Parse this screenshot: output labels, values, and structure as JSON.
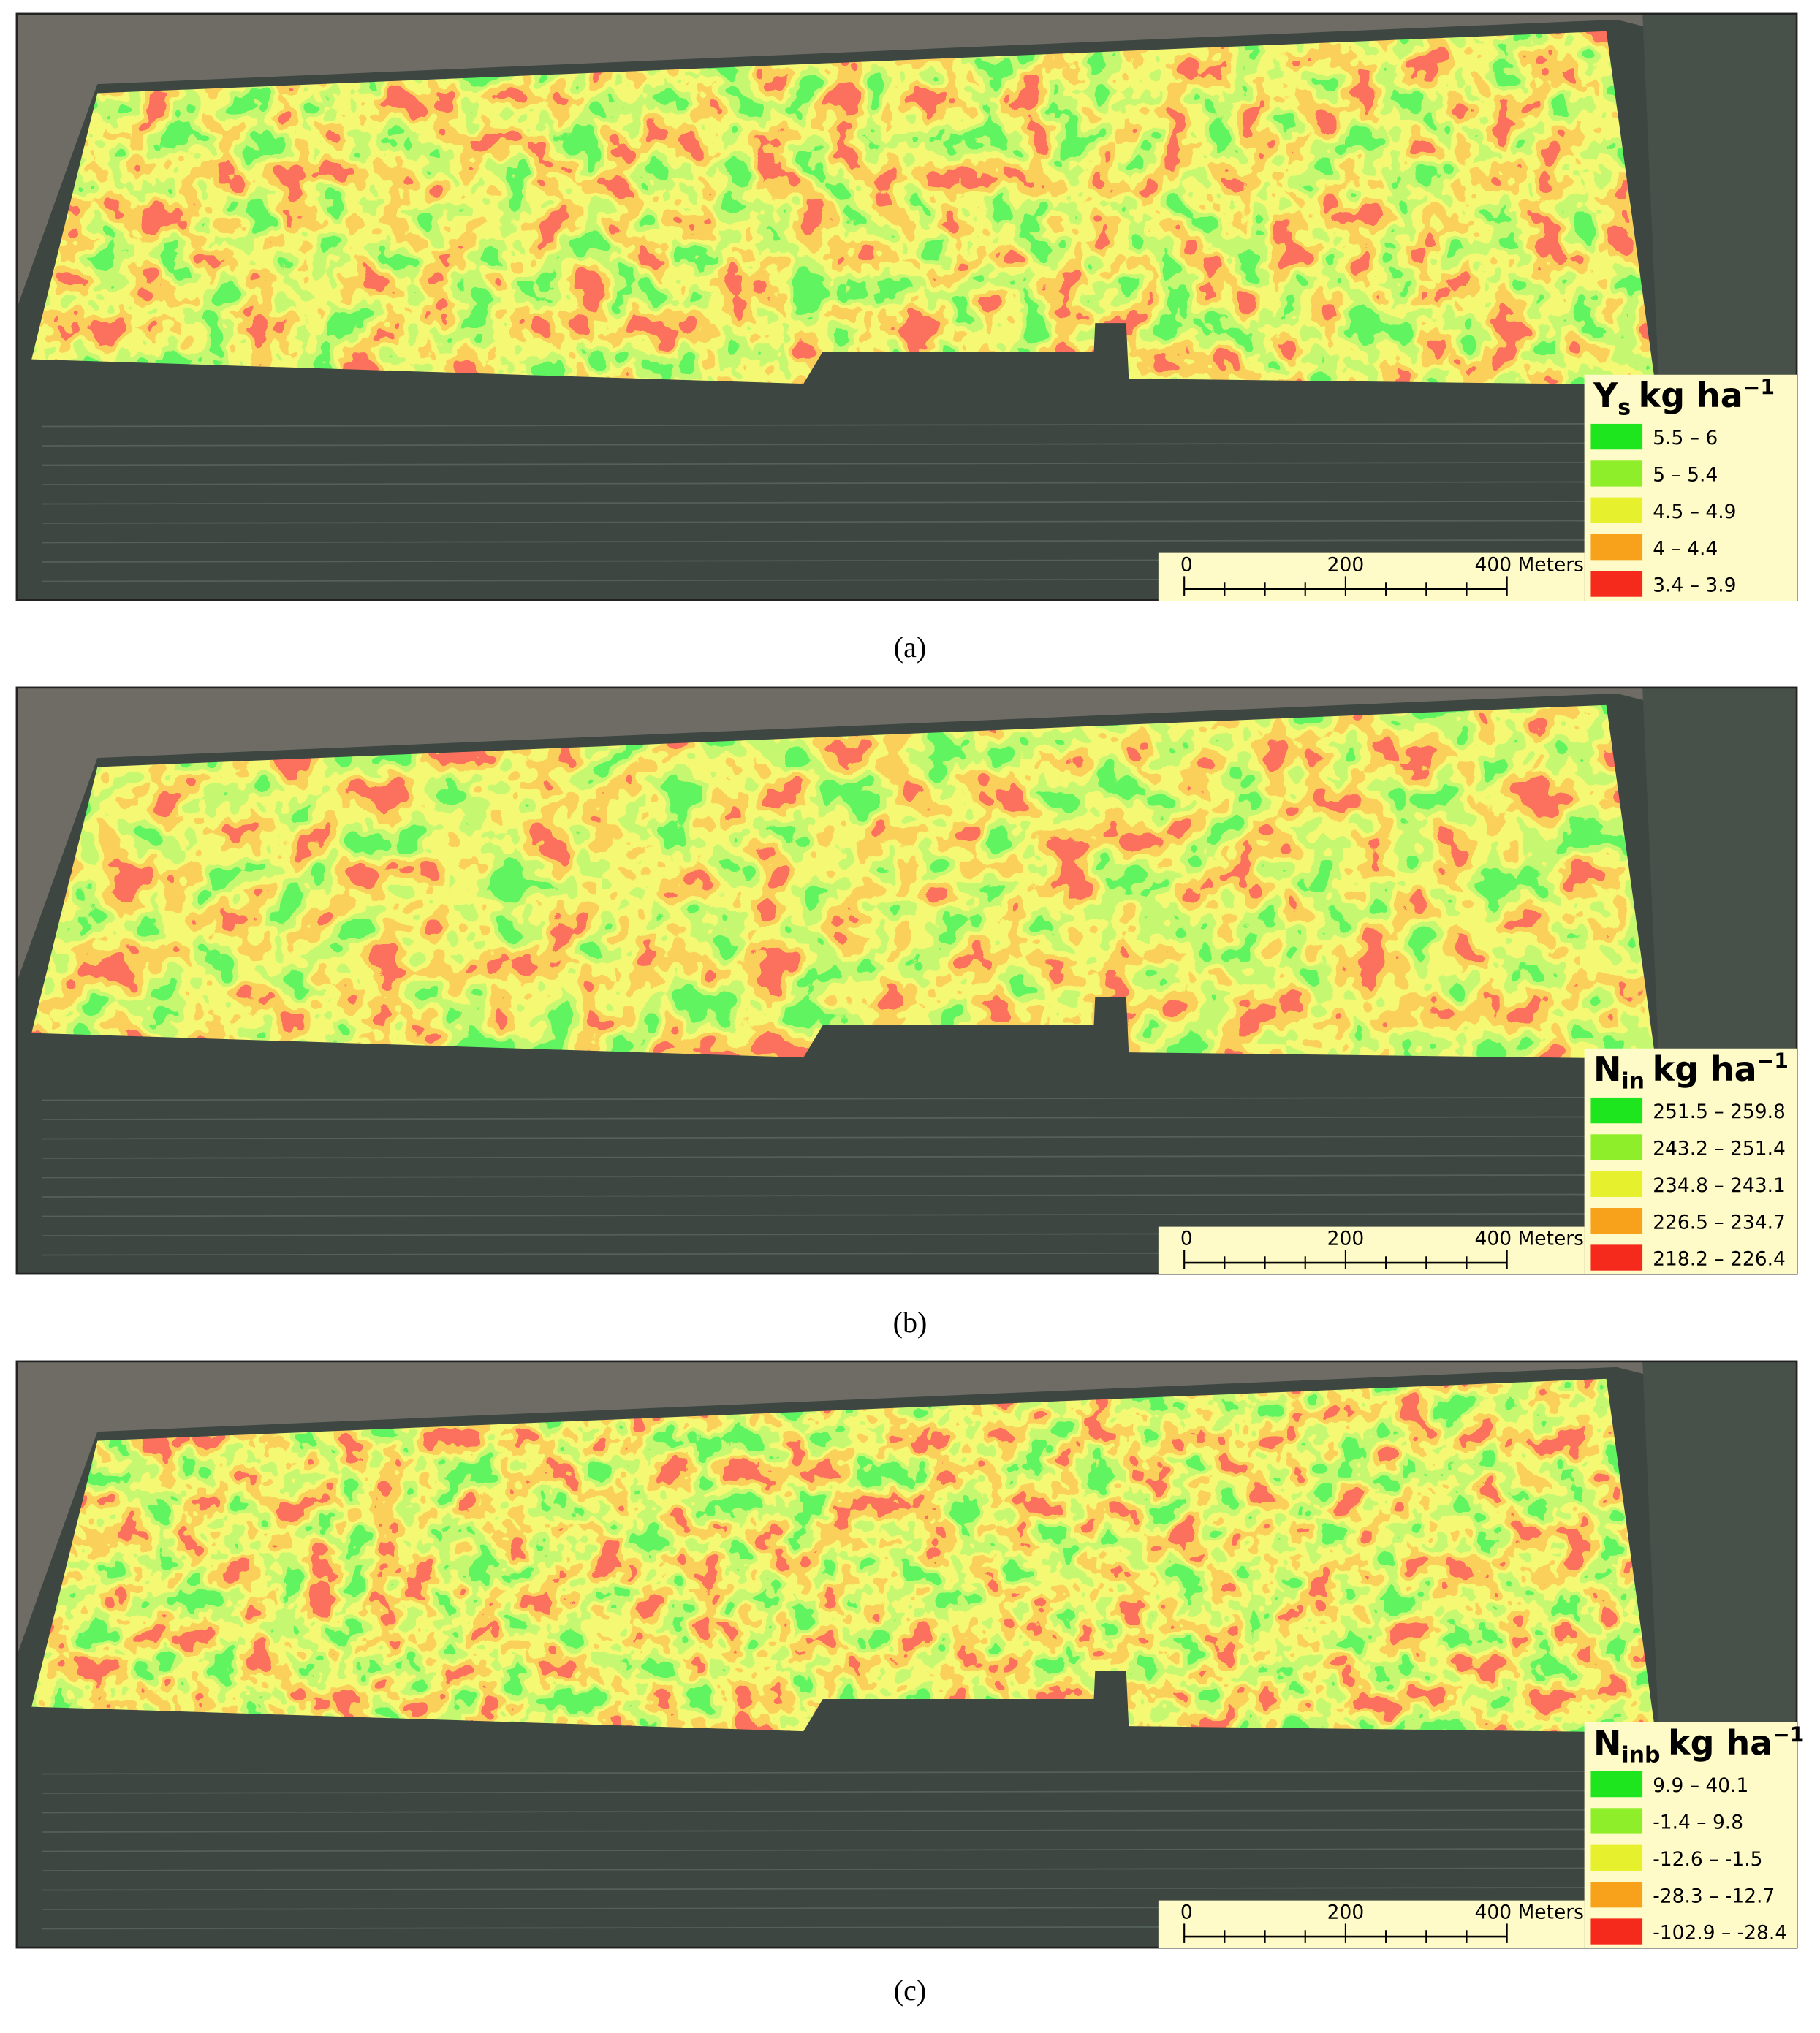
{
  "panels": [
    {
      "legend": {
        "symbol": "Y",
        "subscript": "s",
        "unit": "kg ha",
        "exponent": "−1",
        "items": [
          "5.5 – 6",
          "5 – 5.4",
          "4.5 – 4.9",
          "4 – 4.4",
          "3.4 – 3.9"
        ],
        "colors": [
          "#1ee61e",
          "#8fee2a",
          "#e6f02c",
          "#f7a21a",
          "#f52a1c"
        ]
      },
      "scale_bar": {
        "labels": [
          "0",
          "200",
          "400 Meters"
        ]
      },
      "caption": "(a)"
    },
    {
      "legend": {
        "symbol": "N",
        "subscript": "in",
        "unit": "kg ha",
        "exponent": "−1",
        "items": [
          "251.5 – 259.8",
          "243.2 – 251.4",
          "234.8 – 243.1",
          "226.5 – 234.7",
          "218.2 – 226.4"
        ],
        "colors": [
          "#1ee61e",
          "#8fee2a",
          "#e6f02c",
          "#f7a21a",
          "#f52a1c"
        ]
      },
      "scale_bar": {
        "labels": [
          "0",
          "200",
          "400 Meters"
        ]
      },
      "caption": "(b)"
    },
    {
      "legend": {
        "symbol": "N",
        "subscript": "inb",
        "unit": "kg ha",
        "exponent": "−1",
        "items": [
          "9.9 – 40.1",
          "-1.4 – 9.8",
          "-12.6 – -1.5",
          "-28.3 – -12.7",
          "-102.9 – -28.4"
        ],
        "colors": [
          "#1ee61e",
          "#8fee2a",
          "#e6f02c",
          "#f7a21a",
          "#f52a1c"
        ]
      },
      "scale_bar": {
        "labels": [
          "0",
          "200",
          "400 Meters"
        ]
      },
      "caption": "(c)"
    }
  ]
}
